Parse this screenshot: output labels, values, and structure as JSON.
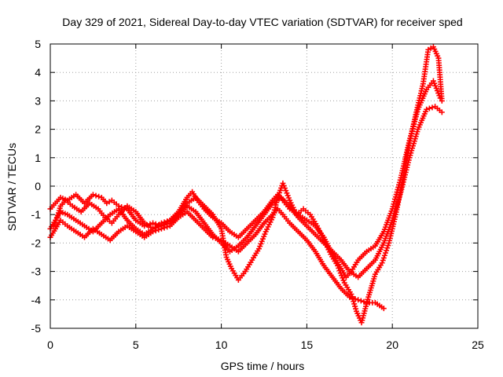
{
  "chart_data": {
    "type": "scatter",
    "title": "Day 329 of 2021, Sidereal Day-to-day VTEC variation (SDTVAR) for receiver sped",
    "xlabel": "GPS time / hours",
    "ylabel": "SDTVAR / TECUs",
    "xlim": [
      0,
      25
    ],
    "ylim": [
      -5,
      5
    ],
    "xticks": [
      0,
      5,
      10,
      15,
      20,
      25
    ],
    "yticks": [
      -5,
      -4,
      -3,
      -2,
      -1,
      0,
      1,
      2,
      3,
      4,
      5
    ],
    "grid": true,
    "marker": "+",
    "color": "#ff0000",
    "series": [
      {
        "x": [
          0.0,
          0.3,
          0.6,
          1.0,
          1.5,
          2.0,
          2.5,
          3.0,
          3.3,
          3.6,
          4.0,
          4.5,
          5.0,
          5.5,
          6.0,
          6.5,
          7.0,
          7.5,
          8.0,
          8.3,
          8.6,
          9.0,
          9.5,
          10.0,
          10.5,
          11.0,
          11.5,
          12.0,
          12.5,
          13.0,
          13.3,
          13.6,
          14.0,
          14.5,
          15.0,
          15.5,
          16.0,
          16.5,
          17.0,
          17.3,
          17.6,
          18.0,
          18.5,
          19.0,
          19.5,
          20.0,
          20.5,
          21.0,
          21.5,
          22.0,
          22.4,
          22.8
        ],
        "y": [
          -0.8,
          -0.6,
          -0.4,
          -0.5,
          -0.3,
          -0.6,
          -0.3,
          -0.4,
          -0.6,
          -0.5,
          -0.7,
          -0.8,
          -1.2,
          -1.4,
          -1.3,
          -1.4,
          -1.2,
          -0.9,
          -0.4,
          -0.2,
          -0.5,
          -0.8,
          -1.1,
          -1.3,
          -1.6,
          -1.8,
          -1.5,
          -1.2,
          -0.9,
          -0.5,
          -0.3,
          -0.5,
          -0.8,
          -1.0,
          -1.2,
          -1.4,
          -1.8,
          -2.4,
          -2.9,
          -3.2,
          -3.0,
          -2.6,
          -2.3,
          -2.1,
          -1.6,
          -0.8,
          0.3,
          1.6,
          2.7,
          3.4,
          3.7,
          3.1
        ]
      },
      {
        "x": [
          0.0,
          0.3,
          0.6,
          1.0,
          1.5,
          2.0,
          2.5,
          3.0,
          3.5,
          4.0,
          4.5,
          5.0,
          5.5,
          6.0,
          6.5,
          7.0,
          7.5,
          8.0,
          8.5,
          9.0,
          9.5,
          10.0,
          10.5,
          11.0,
          11.5,
          12.0,
          12.5,
          13.0,
          13.5,
          14.0,
          14.5,
          15.0,
          15.5,
          16.0,
          16.5,
          17.0,
          17.5,
          18.0,
          18.5,
          19.0,
          19.5,
          20.0,
          20.5,
          21.0,
          21.5,
          22.0,
          22.5,
          22.9
        ],
        "y": [
          -1.5,
          -1.2,
          -0.9,
          -1.0,
          -1.2,
          -1.4,
          -1.6,
          -1.3,
          -1.0,
          -0.8,
          -1.2,
          -1.5,
          -1.7,
          -1.5,
          -1.4,
          -1.3,
          -1.0,
          -0.7,
          -0.9,
          -1.3,
          -1.7,
          -2.0,
          -2.3,
          -2.1,
          -1.8,
          -1.4,
          -1.0,
          -0.6,
          -0.4,
          -0.7,
          -1.1,
          -1.4,
          -1.7,
          -2.0,
          -2.3,
          -2.6,
          -3.0,
          -3.2,
          -2.9,
          -2.6,
          -2.0,
          -1.2,
          -0.2,
          1.0,
          2.0,
          2.7,
          2.8,
          2.6
        ]
      },
      {
        "x": [
          0.0,
          0.3,
          0.6,
          1.0,
          1.5,
          2.0,
          2.5,
          3.0,
          3.5,
          4.0,
          4.5,
          5.0,
          5.5,
          6.0,
          6.5,
          7.0,
          7.5,
          8.0,
          8.5,
          9.0,
          9.5,
          10.0,
          10.5,
          11.0,
          11.5,
          12.0,
          12.5,
          13.0,
          13.3,
          13.6,
          14.0,
          14.5,
          15.0,
          15.5,
          16.0,
          16.5,
          17.0,
          17.5,
          18.0,
          18.5,
          19.0,
          19.5
        ],
        "y": [
          -1.8,
          -1.5,
          -1.2,
          -1.4,
          -1.6,
          -1.8,
          -1.5,
          -1.7,
          -1.9,
          -1.6,
          -1.4,
          -1.6,
          -1.8,
          -1.6,
          -1.5,
          -1.4,
          -1.1,
          -0.9,
          -1.2,
          -1.5,
          -1.8,
          -1.9,
          -2.1,
          -2.3,
          -2.0,
          -1.7,
          -1.3,
          -1.0,
          -0.8,
          -1.0,
          -1.3,
          -1.6,
          -1.9,
          -2.3,
          -2.8,
          -3.2,
          -3.6,
          -3.9,
          -4.0,
          -4.1,
          -4.1,
          -4.3
        ]
      },
      {
        "x": [
          0.2,
          0.4,
          0.6,
          0.9,
          1.3,
          1.8,
          2.3,
          2.8,
          3.2,
          3.6,
          4.0,
          4.5,
          5.0,
          5.5,
          6.0,
          6.5,
          7.0,
          7.5,
          8.0,
          8.5,
          9.0,
          9.5,
          10.0,
          10.3,
          10.6,
          11.0,
          11.4,
          11.8,
          12.2,
          12.6,
          13.0,
          13.3,
          13.6,
          14.0,
          14.4,
          14.8,
          15.2,
          15.6,
          16.0,
          16.4,
          16.8,
          17.2,
          17.6,
          17.9,
          18.2,
          18.6,
          19.0,
          19.4,
          19.8,
          20.2,
          20.6,
          21.0,
          21.4,
          21.8,
          22.1,
          22.4,
          22.7,
          22.9
        ],
        "y": [
          -1.4,
          -1.1,
          -0.7,
          -0.5,
          -0.7,
          -0.9,
          -0.6,
          -0.8,
          -1.1,
          -1.3,
          -1.0,
          -0.7,
          -0.9,
          -1.3,
          -1.5,
          -1.3,
          -1.2,
          -1.0,
          -0.6,
          -0.4,
          -0.7,
          -1.0,
          -1.5,
          -2.5,
          -2.9,
          -3.3,
          -3.0,
          -2.6,
          -2.2,
          -1.6,
          -1.1,
          -0.4,
          0.1,
          -0.5,
          -1.0,
          -0.8,
          -1.0,
          -1.4,
          -1.9,
          -2.4,
          -2.8,
          -3.4,
          -3.8,
          -4.4,
          -4.8,
          -3.9,
          -3.1,
          -2.7,
          -2.0,
          -1.0,
          0.2,
          1.5,
          2.6,
          3.6,
          4.8,
          4.9,
          4.5,
          3.0
        ]
      }
    ]
  }
}
